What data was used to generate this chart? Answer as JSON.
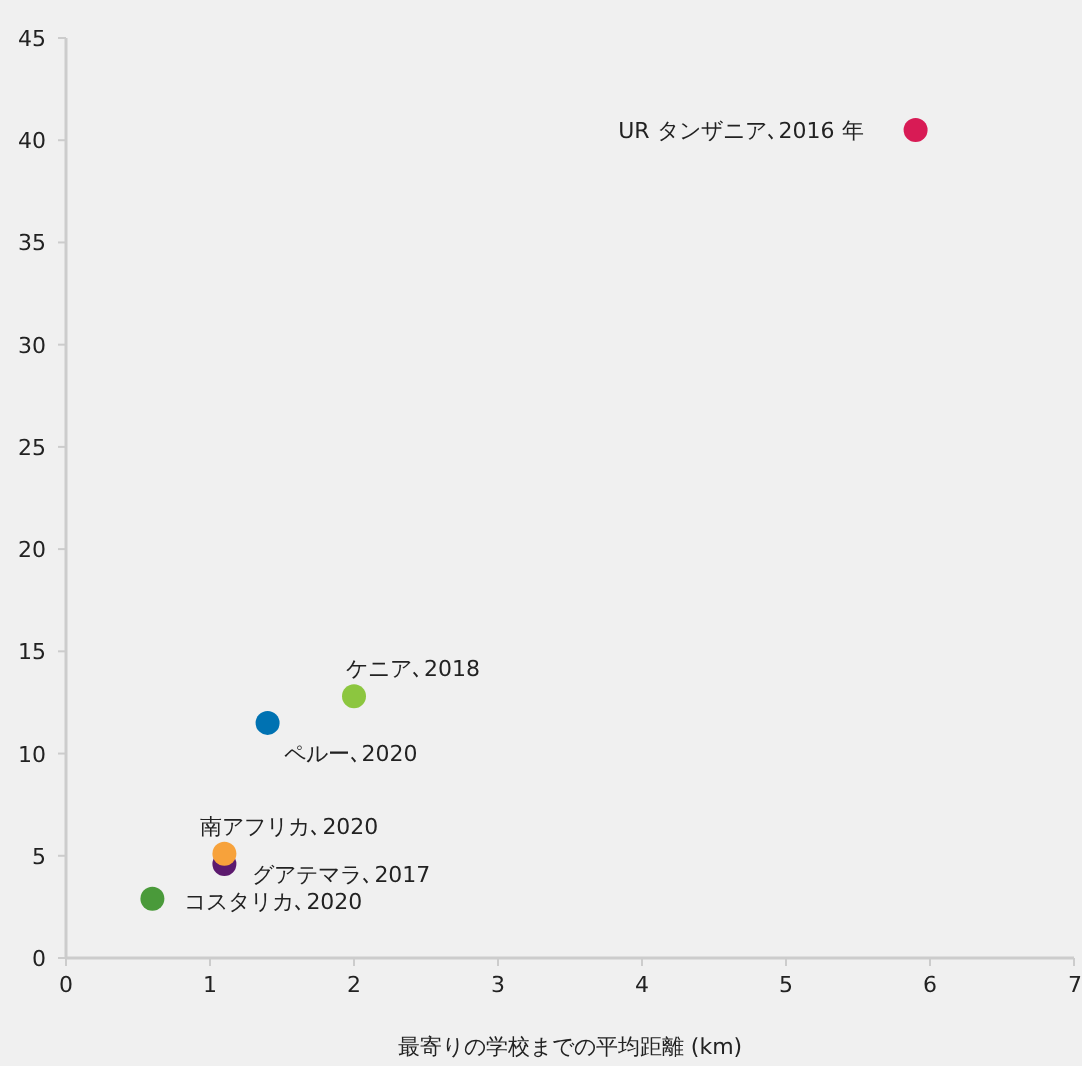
{
  "chart_data": {
    "type": "scatter",
    "xlabel": "最寄りの学校までの平均距離 (km)",
    "xlim": [
      0,
      7
    ],
    "ylim": [
      0,
      45
    ],
    "xticks": [
      0,
      1,
      2,
      3,
      4,
      5,
      6,
      7
    ],
    "yticks": [
      0,
      5,
      10,
      15,
      20,
      25,
      30,
      35,
      40,
      45
    ],
    "grid": false,
    "marker": "circle",
    "series": [
      {
        "name": "UR タンザニア､2016 年",
        "color": "#d81b55",
        "x": [
          5.9
        ],
        "values": [
          40.5
        ]
      },
      {
        "name": "ケニア､2018",
        "color": "#8cc63f",
        "x": [
          2.0
        ],
        "values": [
          12.8
        ]
      },
      {
        "name": "ペルー､2020",
        "color": "#0072b2",
        "x": [
          1.4
        ],
        "values": [
          11.5
        ]
      },
      {
        "name": "グアテマラ､2017",
        "color": "#5c1a6e",
        "x": [
          1.1
        ],
        "values": [
          4.6
        ]
      },
      {
        "name": "南アフリカ､2020",
        "color": "#f7a23b",
        "x": [
          1.1
        ],
        "values": [
          5.1
        ]
      },
      {
        "name": "コスタリカ､2020",
        "color": "#4a9a3a",
        "x": [
          0.6
        ],
        "values": [
          2.9
        ]
      }
    ]
  }
}
